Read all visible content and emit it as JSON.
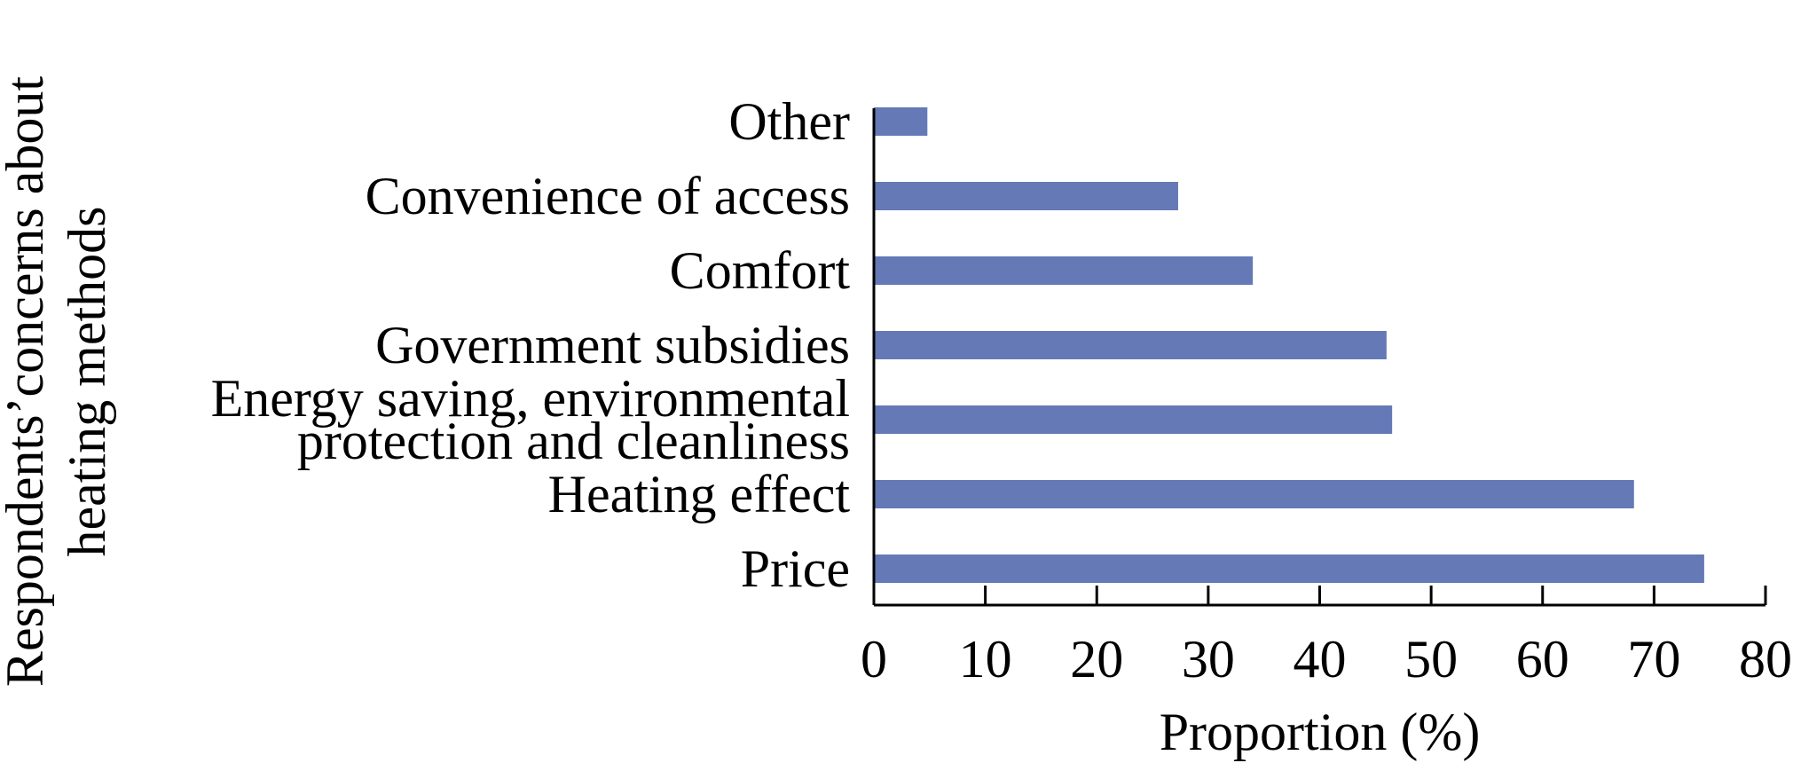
{
  "chart_data": {
    "type": "bar",
    "orientation": "horizontal",
    "categories": [
      [
        "Price"
      ],
      [
        "Heating effect"
      ],
      [
        "Energy saving, environmental",
        "protection and cleanliness"
      ],
      [
        "Government subsidies"
      ],
      [
        "Comfort"
      ],
      [
        "Convenience of access"
      ],
      [
        "Other"
      ]
    ],
    "values": [
      74.5,
      68.2,
      46.5,
      46.0,
      34.0,
      27.3,
      4.8
    ],
    "xlabel": "Proportion (%)",
    "ylabel": [
      "Respondents’concerns about",
      "heating methods"
    ],
    "xlim": [
      0,
      80
    ],
    "xticks": [
      "0",
      "10",
      "20",
      "30",
      "40",
      "50",
      "60",
      "70",
      "80"
    ],
    "grid": false,
    "legend": "none",
    "bar_color": "#6479B6"
  }
}
